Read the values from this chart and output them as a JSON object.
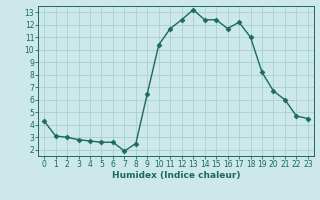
{
  "x": [
    0,
    1,
    2,
    3,
    4,
    5,
    6,
    7,
    8,
    9,
    10,
    11,
    12,
    13,
    14,
    15,
    16,
    17,
    18,
    19,
    20,
    21,
    22,
    23
  ],
  "y": [
    4.3,
    3.1,
    3.0,
    2.8,
    2.7,
    2.6,
    2.6,
    1.9,
    2.5,
    6.5,
    10.4,
    11.7,
    12.4,
    13.2,
    12.4,
    12.4,
    11.7,
    12.2,
    11.0,
    8.2,
    6.7,
    6.0,
    4.7,
    4.5
  ],
  "xlabel": "Humidex (Indice chaleur)",
  "ylabel": "",
  "line_color": "#1a6b5a",
  "marker": "D",
  "bg_color": "#cce8e8",
  "grid_color": "#aacece",
  "axis_color": "#1a6b5a",
  "tick_label_color": "#1a6b5a",
  "ylim": [
    1.5,
    13.5
  ],
  "xlim": [
    -0.5,
    23.5
  ],
  "yticks": [
    2,
    3,
    4,
    5,
    6,
    7,
    8,
    9,
    10,
    11,
    12,
    13
  ],
  "xticks": [
    0,
    1,
    2,
    3,
    4,
    5,
    6,
    7,
    8,
    9,
    10,
    11,
    12,
    13,
    14,
    15,
    16,
    17,
    18,
    19,
    20,
    21,
    22,
    23
  ]
}
